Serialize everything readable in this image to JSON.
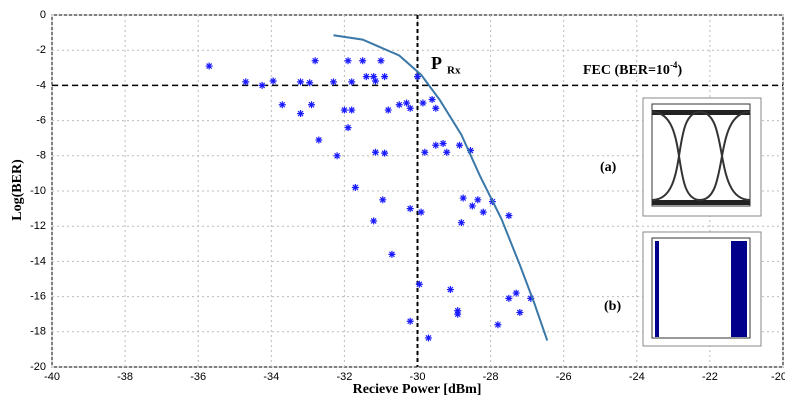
{
  "chart_data": {
    "type": "scatter",
    "xlabel": "Recieve Power [dBm]",
    "ylabel": "Log(BER)",
    "xlim": [
      -40,
      -20
    ],
    "ylim": [
      -20,
      0
    ],
    "xticks": [
      -40,
      -38,
      -36,
      -34,
      -32,
      -30,
      -28,
      -26,
      -24,
      -22,
      -20
    ],
    "yticks": [
      0,
      -2,
      -4,
      -6,
      -8,
      -10,
      -12,
      -14,
      -16,
      -18,
      -20
    ],
    "grid": true,
    "hlines": [
      -4
    ],
    "vlines": [
      -30
    ],
    "annotations": {
      "prx_main": "P",
      "prx_sub": "Rx",
      "fec_main": "FEC (BER=10",
      "fec_exp": "-4",
      "fec_end": ")",
      "inset_a": "(a)",
      "inset_b": "(b)"
    },
    "series": [
      {
        "type": "scatter",
        "color": "#1a1aff",
        "x": [
          -35.7,
          -34.7,
          -34.25,
          -33.95,
          -33.2,
          -32.95,
          -32.8,
          -33.7,
          -33.2,
          -32.9,
          -32.7,
          -32.3,
          -32.2,
          -32.0,
          -31.9,
          -31.8,
          -31.8,
          -31.9,
          -31.5,
          -31.4,
          -31.2,
          -31.15,
          -31.0,
          -30.9,
          -31.7,
          -31.15,
          -30.9,
          -30.95,
          -31.2,
          -30.8,
          -30.5,
          -30.3,
          -30.2,
          -30.0,
          -30.7,
          -30.2,
          -29.9,
          -29.85,
          -29.6,
          -29.5,
          -29.8,
          -29.5,
          -29.3,
          -29.2,
          -28.85,
          -28.55,
          -28.75,
          -28.5,
          -28.8,
          -28.35,
          -28.2,
          -27.95,
          -27.5,
          -29.95,
          -30.2,
          -29.7,
          -29.1,
          -28.9,
          -28.9,
          -27.8,
          -27.5,
          -27.3,
          -27.2,
          -26.9
        ],
        "values": [
          -2.9,
          -3.8,
          -4.0,
          -3.75,
          -3.8,
          -3.85,
          -2.6,
          -5.1,
          -5.6,
          -5.1,
          -7.1,
          -3.8,
          -8.0,
          -5.4,
          -2.6,
          -3.8,
          -5.4,
          -6.4,
          -2.6,
          -3.5,
          -3.5,
          -3.75,
          -2.6,
          -3.5,
          -9.8,
          -7.8,
          -7.85,
          -10.5,
          -11.7,
          -5.4,
          -5.1,
          -5.0,
          -5.3,
          -3.5,
          -13.6,
          -11.0,
          -11.2,
          -5.0,
          -4.8,
          -5.3,
          -7.8,
          -7.4,
          -7.3,
          -7.8,
          -7.4,
          -7.7,
          -10.4,
          -10.85,
          -11.8,
          -10.5,
          -11.2,
          -10.6,
          -11.4,
          -15.3,
          -17.4,
          -18.35,
          -15.6,
          -16.8,
          -17.0,
          -17.6,
          -16.1,
          -15.8,
          -16.9,
          -16.1
        ]
      },
      {
        "type": "line",
        "color": "#3a78a8",
        "x": [
          -32.3,
          -31.5,
          -30.5,
          -29.9,
          -29.4,
          -28.8,
          -28.3,
          -27.7,
          -27.2,
          -26.8,
          -26.45
        ],
        "values": [
          -1.15,
          -1.4,
          -2.3,
          -3.4,
          -4.8,
          -6.8,
          -9.1,
          -11.6,
          -14.2,
          -16.4,
          -18.5
        ]
      }
    ]
  }
}
